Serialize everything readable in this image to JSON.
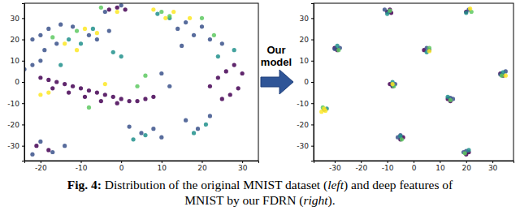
{
  "chart_data": [
    {
      "type": "scatter",
      "xlim": [
        -24,
        34
      ],
      "ylim": [
        -37,
        37
      ],
      "xticks": [
        -20,
        -10,
        0,
        10,
        20,
        30
      ],
      "yticks": [
        -30,
        -20,
        -10,
        0,
        10,
        20,
        30
      ],
      "series": [
        {
          "color": "#440154",
          "x": [
            -20,
            -18,
            -16,
            -14,
            -12,
            -10,
            -8,
            -6,
            -4,
            -2,
            0,
            2,
            4,
            6,
            8,
            -17,
            -13,
            -9,
            -5,
            -1,
            22,
            24,
            26,
            28,
            30,
            29,
            27,
            25,
            -3,
            -1,
            1,
            -21,
            -18
          ],
          "values": [
            2,
            1,
            0,
            -1,
            -2,
            -3,
            -4,
            -5,
            -6,
            -7,
            -8,
            -9,
            -9,
            -8,
            -7,
            -3,
            -5,
            -7,
            -9,
            -10,
            -2,
            2,
            5,
            8,
            4,
            -3,
            -6,
            -8,
            34,
            35,
            34,
            -30,
            -32
          ]
        },
        {
          "color": "#3b528b",
          "x": [
            -22,
            -20,
            -18,
            -15,
            -12,
            -16,
            -19,
            -8,
            -6,
            -3,
            14,
            16,
            18,
            20,
            22,
            25,
            15,
            -20,
            -17,
            -14,
            -22,
            2,
            5,
            8,
            10,
            16,
            19,
            22,
            -4,
            0,
            -24,
            -22,
            -20,
            12,
            10
          ],
          "values": [
            20,
            22,
            25,
            27,
            26,
            18,
            15,
            22,
            20,
            24,
            25,
            28,
            22,
            26,
            20,
            18,
            17,
            -28,
            -33,
            -30,
            -34,
            -21,
            -24,
            -22,
            -26,
            -18,
            -22,
            -16,
            33,
            36,
            6,
            8,
            10,
            -2,
            4
          ]
        },
        {
          "color": "#21918c",
          "x": [
            -13,
            -10,
            -7,
            6,
            3,
            18,
            21,
            12,
            9,
            24,
            28,
            -2,
            0,
            -15
          ],
          "values": [
            20,
            18,
            25,
            -25,
            -27,
            -24,
            -20,
            30,
            32,
            12,
            15,
            14,
            12,
            8
          ]
        },
        {
          "color": "#5ec962",
          "x": [
            10,
            12,
            -5,
            20,
            23,
            -11,
            -17,
            6,
            4,
            -8
          ],
          "values": [
            33,
            31,
            35,
            30,
            22,
            24,
            21,
            3,
            -2,
            -12
          ]
        },
        {
          "color": "#fde725",
          "x": [
            8,
            11,
            13,
            -9,
            -6,
            -20,
            -18,
            -14,
            -11,
            17,
            -4,
            -1
          ],
          "values": [
            34,
            30,
            33,
            25,
            23,
            -6,
            -5,
            18,
            15,
            30,
            -1,
            33
          ]
        }
      ]
    },
    {
      "type": "scatter",
      "xlim": [
        -38,
        38
      ],
      "ylim": [
        -37,
        37
      ],
      "xticks": [
        -30,
        -20,
        -10,
        0,
        10,
        20,
        30
      ],
      "yticks": [
        -30,
        -20,
        -10,
        0,
        10,
        20,
        30
      ],
      "series": [
        {
          "color": "#440154",
          "x": [
            -10,
            -9,
            -8.5,
            -30,
            -29,
            33,
            34,
            -8,
            -9,
            13,
            14,
            -5,
            -4,
            20,
            21,
            4,
            20
          ],
          "values": [
            33,
            34,
            32.5,
            16,
            15,
            4,
            3,
            -2,
            -1,
            -8,
            -9,
            -27,
            -26,
            -34,
            -33,
            15,
            33
          ]
        },
        {
          "color": "#3b528b",
          "x": [
            -11,
            -9.5,
            -28,
            -30,
            5,
            6,
            35,
            33,
            -7,
            -8,
            14,
            15,
            -6,
            -5,
            19,
            20,
            21,
            -34
          ],
          "values": [
            34,
            33,
            16,
            15.5,
            16,
            15,
            5,
            3.5,
            -1,
            -1.5,
            -7.5,
            -8,
            -26,
            -25,
            -33,
            -32.5,
            34,
            -13
          ]
        },
        {
          "color": "#21918c",
          "x": [
            -10,
            -29,
            5,
            34,
            -8,
            13,
            -5,
            21,
            20,
            -33
          ],
          "values": [
            32,
            17,
            14,
            4.5,
            0,
            -7,
            -25.5,
            -32,
            32.5,
            -12.5
          ]
        },
        {
          "color": "#5ec962",
          "x": [
            -9,
            -28.5,
            6,
            33.5,
            -7.5,
            14,
            -4.5,
            19.5,
            22,
            -34.5
          ],
          "values": [
            33.5,
            15,
            16,
            3,
            -2,
            -8.5,
            -27,
            -33.5,
            33,
            -12
          ]
        },
        {
          "color": "#fde725",
          "x": [
            -35,
            -34,
            -33.5,
            21.5,
            -8,
            6,
            35
          ],
          "values": [
            -14,
            -12.5,
            -13.5,
            34.5,
            -1,
            14.5,
            3
          ]
        }
      ]
    }
  ],
  "arrow_label": "Our model",
  "caption": [
    [
      {
        "text": "Fig. 4:",
        "style": "bold"
      },
      {
        "text": " Distribution of the original MNIST dataset (",
        "style": "normal"
      },
      {
        "text": "left",
        "style": "italic"
      },
      {
        "text": ") and deep features of",
        "style": "normal"
      }
    ],
    [
      {
        "text": "MNIST by our FDRN (",
        "style": "normal"
      },
      {
        "text": "right",
        "style": "italic"
      },
      {
        "text": ").",
        "style": "normal"
      }
    ]
  ]
}
